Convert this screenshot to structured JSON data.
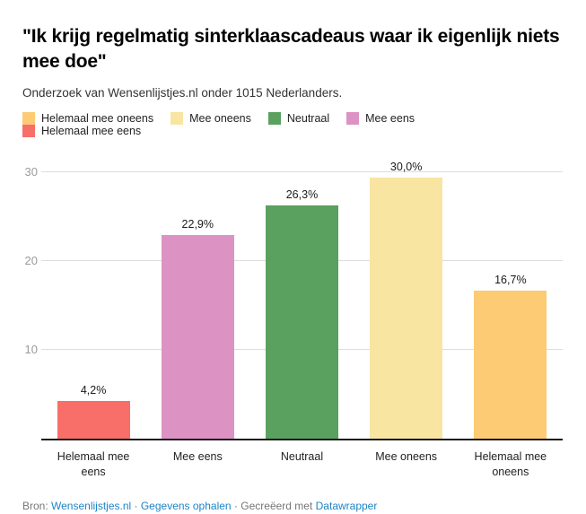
{
  "header": {
    "title": "\"Ik krijg regelmatig sinterklaascadeaus waar ik eigenlijk niets mee doe\"",
    "subtitle": "Onderzoek van Wensenlijstjes.nl onder 1015 Nederlanders."
  },
  "legend": {
    "items": [
      {
        "label": "Helemaal mee oneens",
        "color": "#fccb74"
      },
      {
        "label": "Mee oneens",
        "color": "#f8e5a2"
      },
      {
        "label": "Neutraal",
        "color": "#5aa15f"
      },
      {
        "label": "Mee eens",
        "color": "#dd92c4"
      },
      {
        "label": "Helemaal mee eens",
        "color": "#f86e68"
      }
    ]
  },
  "chart_data": {
    "type": "bar",
    "title": "\"Ik krijg regelmatig sinterklaascadeaus waar ik eigenlijk niets mee doe\"",
    "subtitle": "Onderzoek van Wensenlijstjes.nl onder 1015 Nederlanders.",
    "categories": [
      "Helemaal mee eens",
      "Mee eens",
      "Neutraal",
      "Mee oneens",
      "Helemaal mee oneens"
    ],
    "values": [
      4.2,
      22.9,
      26.3,
      30.0,
      16.7
    ],
    "value_labels": [
      "4,2%",
      "22,9%",
      "26,3%",
      "30,0%",
      "16,7%"
    ],
    "bar_colors": [
      "#f86e68",
      "#dd92c4",
      "#5aa15f",
      "#f8e5a2",
      "#fccb74"
    ],
    "y_ticks": [
      10,
      20,
      30
    ],
    "ylim": [
      0,
      31.5
    ],
    "xlabel": "",
    "ylabel": "",
    "grid": true,
    "legend_position": "top",
    "colors": {
      "gridline": "#dddddd",
      "baseline": "#18181a",
      "tick_label": "#9b9b9b",
      "link_blue": "#1e84c4"
    }
  },
  "footer": {
    "source_prefix": "Bron: ",
    "source_link": "Wensenlijstjes.nl",
    "separator1": " · ",
    "data_link": "Gegevens ophalen",
    "separator2": " · ",
    "created_with": "Gecreëerd met ",
    "creator_link": "Datawrapper"
  }
}
